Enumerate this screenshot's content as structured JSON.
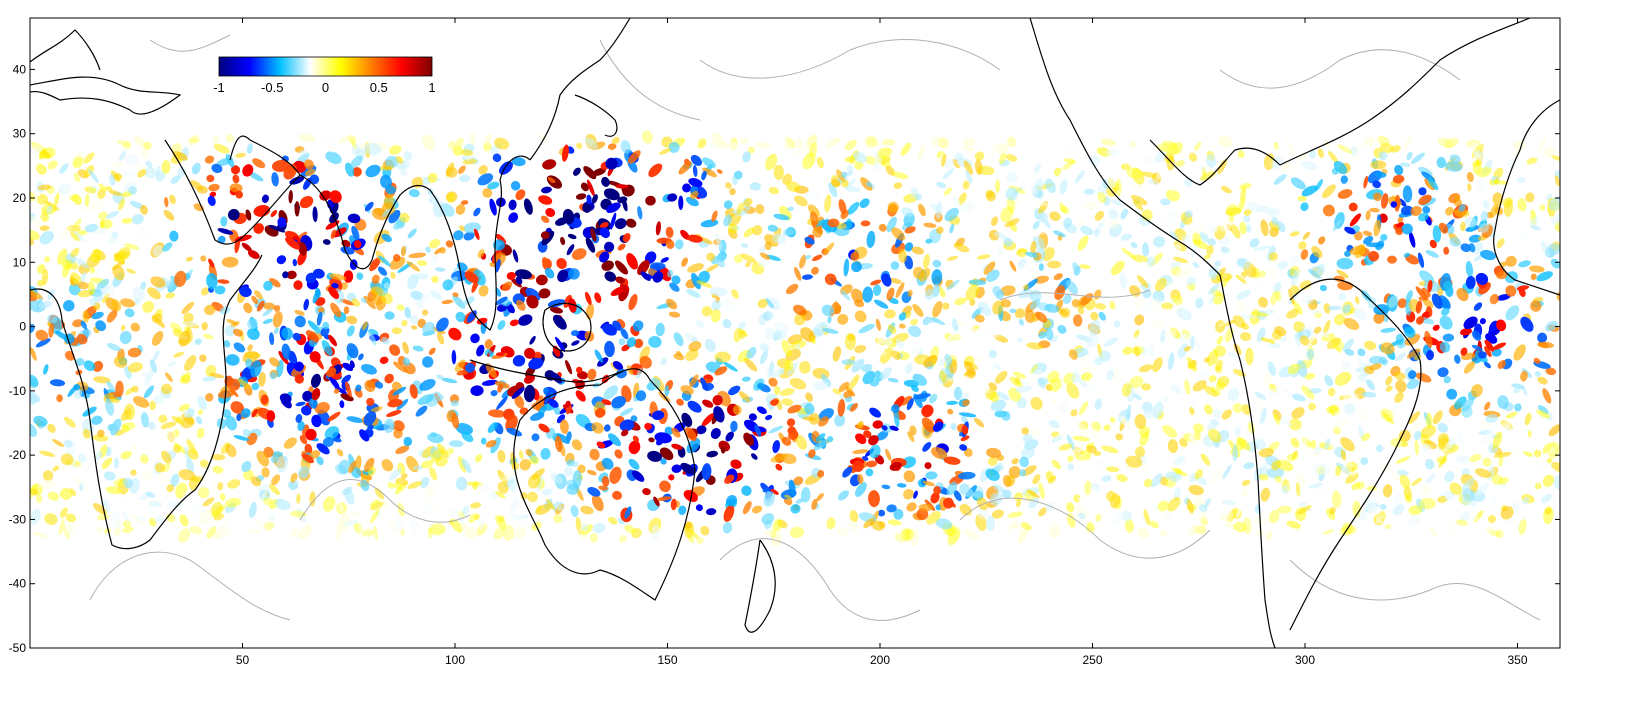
{
  "map": {
    "projection": "equirectangular",
    "lon_range": [
      0,
      360
    ],
    "lat_range": [
      -50,
      48
    ],
    "x_ticks": [
      {
        "value": 50,
        "label": "50"
      },
      {
        "value": 100,
        "label": "100"
      },
      {
        "value": 150,
        "label": "150"
      },
      {
        "value": 200,
        "label": "200"
      },
      {
        "value": 250,
        "label": "250"
      },
      {
        "value": 300,
        "label": "300"
      },
      {
        "value": 350,
        "label": "350"
      }
    ],
    "y_ticks": [
      {
        "value": 40,
        "label": "40"
      },
      {
        "value": 30,
        "label": "30"
      },
      {
        "value": 20,
        "label": "20"
      },
      {
        "value": 10,
        "label": "10"
      },
      {
        "value": 0,
        "label": "0"
      },
      {
        "value": -10,
        "label": "-10"
      },
      {
        "value": -20,
        "label": "-20"
      },
      {
        "value": -30,
        "label": "-30"
      },
      {
        "value": -40,
        "label": "-40"
      },
      {
        "value": -50,
        "label": "-50"
      }
    ],
    "field_lat_extent": [
      -34,
      30
    ],
    "coastline_color": "#000000",
    "bathymetry_color": "#b0b0b0"
  },
  "colorbar": {
    "range": [
      -1,
      1
    ],
    "stops": [
      "#00007f",
      "#0000ff",
      "#00bfff",
      "#ffffff",
      "#ffff00",
      "#ff7f00",
      "#ff0000",
      "#7f0000"
    ],
    "ticks": [
      {
        "value": -1,
        "label": "-1"
      },
      {
        "value": -0.5,
        "label": "-0.5"
      },
      {
        "value": 0,
        "label": "0"
      },
      {
        "value": 0.5,
        "label": "0.5"
      },
      {
        "value": 1,
        "label": "1"
      }
    ]
  },
  "hotspots": [
    {
      "lon": 133,
      "lat": 20,
      "amp": 1.0
    },
    {
      "lon": 128,
      "lat": 10,
      "amp": 0.9
    },
    {
      "lon": 120,
      "lat": -5,
      "amp": 0.8
    },
    {
      "lon": 60,
      "lat": 15,
      "amp": 0.85
    },
    {
      "lon": 70,
      "lat": -10,
      "amp": 0.7
    },
    {
      "lon": 155,
      "lat": -20,
      "amp": 0.85
    },
    {
      "lon": 195,
      "lat": 10,
      "amp": 0.5
    },
    {
      "lon": 205,
      "lat": -20,
      "amp": 0.6
    },
    {
      "lon": 240,
      "lat": 5,
      "amp": 0.35
    },
    {
      "lon": 320,
      "lat": 15,
      "amp": 0.55
    },
    {
      "lon": 340,
      "lat": 0,
      "amp": 0.6
    },
    {
      "lon": 10,
      "lat": -5,
      "amp": 0.45
    }
  ]
}
